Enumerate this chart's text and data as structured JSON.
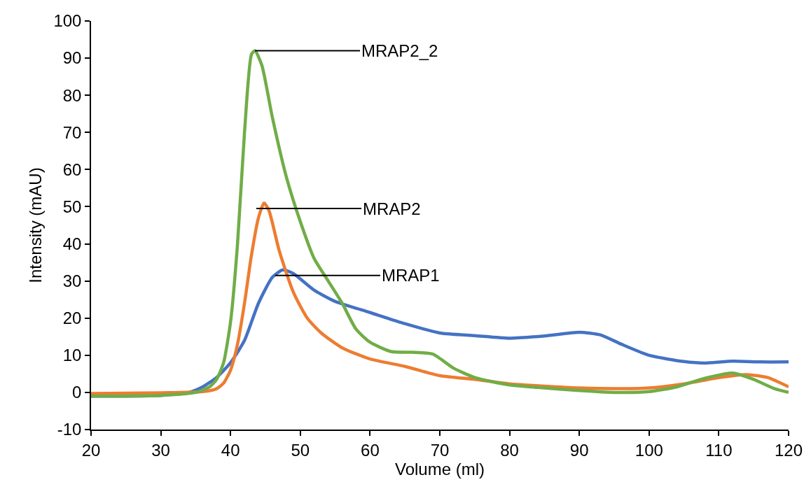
{
  "chart_data": {
    "type": "line",
    "xlabel": "Volume (ml)",
    "ylabel": "Intensity (mAU)",
    "xlim": [
      20,
      120
    ],
    "xticks": [
      20,
      30,
      40,
      50,
      60,
      70,
      80,
      90,
      100,
      110,
      120
    ],
    "ylim": [
      -10,
      100
    ],
    "yticks": [
      -10,
      0,
      10,
      20,
      30,
      40,
      50,
      60,
      70,
      80,
      90,
      100
    ],
    "marker": "none",
    "line_style": "solid",
    "series": [
      {
        "color": "#4472c4",
        "x": [
          20,
          30,
          34,
          36,
          38,
          40,
          42,
          44,
          46,
          47.5,
          49,
          52,
          55,
          60,
          65,
          70,
          75,
          80,
          85,
          90,
          93,
          96,
          100,
          105,
          108,
          112,
          116,
          120
        ],
        "values": [
          -1,
          -0.8,
          0,
          1.5,
          4,
          8,
          14,
          24,
          31,
          33,
          32,
          27.5,
          24.5,
          21.5,
          18.5,
          16,
          15.3,
          14.6,
          15.2,
          16.2,
          15.5,
          13,
          10,
          8.3,
          7.9,
          8.4,
          8.2,
          8.2
        ]
      },
      {
        "color": "#ed7d31",
        "x": [
          20,
          30,
          36,
          38,
          39,
          40,
          41,
          42,
          43,
          44,
          44.8,
          45.5,
          47,
          49,
          51,
          53,
          56,
          60,
          65,
          70,
          75,
          80,
          90,
          95,
          100,
          105,
          110,
          114,
          117,
          120
        ],
        "values": [
          -0.3,
          -0.1,
          0.2,
          1,
          2.5,
          6,
          13,
          24,
          37,
          47,
          51,
          49,
          38,
          27,
          20,
          16,
          12,
          9,
          7,
          4.5,
          3.5,
          2.3,
          1.2,
          1,
          1.2,
          2.3,
          4,
          4.8,
          4,
          1.5
        ]
      },
      {
        "color": "#70ad47",
        "x": [
          20,
          30,
          35,
          37,
          38,
          39,
          40,
          41,
          42,
          43,
          43.5,
          44.5,
          46,
          48,
          50,
          52,
          54,
          56,
          58,
          60,
          63,
          66,
          69,
          72,
          75,
          80,
          85,
          90,
          95,
          100,
          104,
          108,
          112,
          115,
          118,
          120
        ],
        "values": [
          -1,
          -0.8,
          0,
          1.5,
          3.5,
          8,
          19,
          40,
          70,
          91,
          92,
          88,
          74,
          58,
          46,
          36,
          30,
          24,
          17,
          13.5,
          11,
          10.8,
          10.3,
          6.5,
          4,
          2,
          1.2,
          0.5,
          0,
          0.2,
          1.5,
          3.8,
          5.2,
          3.5,
          1,
          0
        ]
      }
    ],
    "annotations": [
      {
        "text": "MRAP2_2",
        "x": 43.5,
        "y": 92
      },
      {
        "text": "MRAP2",
        "x": 43.7,
        "y": 49.5
      },
      {
        "text": "MRAP1",
        "x": 46.4,
        "y": 31.5
      }
    ]
  }
}
